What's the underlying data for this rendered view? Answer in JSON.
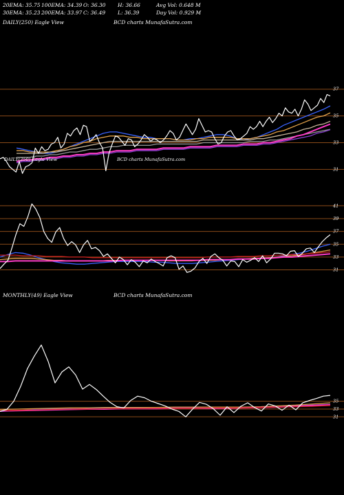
{
  "header": {
    "ema20": "20EMA: 35.75",
    "ema100": "100EMA: 34.39",
    "open": "O: 36.30",
    "high": "H: 36.66",
    "avg_vol": "Avg Vol: 0.648  M",
    "ema30": "30EMA: 35.23",
    "ema200": "200EMA: 33.97",
    "close": "C: 36.49",
    "low": "L: 36.39",
    "day_vol": "Day Vol: 0.929  M"
  },
  "colors": {
    "background": "#000000",
    "price": "#ffffff",
    "ma_blue": "#3a63ff",
    "ma_orange": "#e3a24a",
    "ma_tan": "#c9b79c",
    "ma_gray": "#9b9b9b",
    "ma_magenta": "#ff3cc8",
    "ma_purple": "#8a3fd1",
    "ma_red": "#d02020",
    "gridline": "#8a4a18"
  },
  "chart_data": [
    {
      "type": "line",
      "label": "DAILY(250) Eagle  View",
      "watermark": "BCD charts MunafaSutra.com",
      "overlay_text": "BCD charts MunafaSutra.com",
      "overlay_prefix": "DAILY(250) Eagle  View",
      "y_ticks": [
        37,
        35,
        33,
        31
      ],
      "ylim": [
        30.2,
        37.6
      ],
      "grid": true,
      "price": [
        31.8,
        31.9,
        31.6,
        31.2,
        31.0,
        30.8,
        31.6,
        30.7,
        31.2,
        31.3,
        31.5,
        32.6,
        32.2,
        32.7,
        32.4,
        32.5,
        32.9,
        33.0,
        33.4,
        32.6,
        32.9,
        33.7,
        33.5,
        33.9,
        34.1,
        33.6,
        34.3,
        34.2,
        33.1,
        33.3,
        33.6,
        33.0,
        32.6,
        30.9,
        32.2,
        32.9,
        33.5,
        33.4,
        33.1,
        32.8,
        33.3,
        33.2,
        32.7,
        32.9,
        33.2,
        33.6,
        33.4,
        33.1,
        33.3,
        33.2,
        33.0,
        33.2,
        33.5,
        33.9,
        33.7,
        33.2,
        33.4,
        33.9,
        34.4,
        34.0,
        33.6,
        34.0,
        34.8,
        34.3,
        33.8,
        33.9,
        33.8,
        33.3,
        32.9,
        33.0,
        33.5,
        33.8,
        33.9,
        33.5,
        33.2,
        33.3,
        33.5,
        33.7,
        34.2,
        34.0,
        34.2,
        34.6,
        34.2,
        34.6,
        34.9,
        34.5,
        34.8,
        35.2,
        35.0,
        35.6,
        35.3,
        35.2,
        35.5,
        35.0,
        35.5,
        36.2,
        35.9,
        35.4,
        35.6,
        35.8,
        36.3,
        36.0,
        36.6,
        36.49
      ],
      "series": [
        {
          "name": "20EMA",
          "color_key": "ma_blue",
          "values": [
            32.6,
            32.5,
            32.4,
            32.3,
            32.2,
            32.2,
            32.3,
            32.5,
            32.7,
            32.9,
            33.1,
            33.3,
            33.5,
            33.7,
            33.8,
            33.8,
            33.7,
            33.6,
            33.5,
            33.4,
            33.4,
            33.3,
            33.3,
            33.3,
            33.2,
            33.2,
            33.3,
            33.3,
            33.4,
            33.5,
            33.6,
            33.6,
            33.5,
            33.3,
            33.2,
            33.3,
            33.4,
            33.6,
            33.8,
            34.0,
            34.3,
            34.5,
            34.7,
            34.9,
            35.1,
            35.3,
            35.5,
            35.75
          ]
        },
        {
          "name": "30EMA",
          "color_key": "ma_orange",
          "values": [
            32.4,
            32.4,
            32.3,
            32.3,
            32.3,
            32.3,
            32.4,
            32.5,
            32.7,
            32.8,
            33.0,
            33.1,
            33.3,
            33.4,
            33.5,
            33.5,
            33.5,
            33.4,
            33.4,
            33.3,
            33.3,
            33.3,
            33.3,
            33.3,
            33.2,
            33.2,
            33.2,
            33.3,
            33.3,
            33.4,
            33.4,
            33.4,
            33.4,
            33.3,
            33.3,
            33.3,
            33.4,
            33.5,
            33.6,
            33.8,
            33.9,
            34.1,
            34.3,
            34.5,
            34.7,
            34.9,
            35.0,
            35.23
          ]
        },
        {
          "name": "EMA",
          "color_key": "ma_tan",
          "values": [
            32.2,
            32.2,
            32.2,
            32.2,
            32.2,
            32.3,
            32.3,
            32.4,
            32.5,
            32.6,
            32.7,
            32.8,
            32.9,
            33.0,
            33.1,
            33.1,
            33.1,
            33.1,
            33.1,
            33.1,
            33.1,
            33.1,
            33.1,
            33.1,
            33.1,
            33.1,
            33.1,
            33.1,
            33.2,
            33.2,
            33.2,
            33.2,
            33.2,
            33.2,
            33.2,
            33.2,
            33.3,
            33.3,
            33.4,
            33.5,
            33.6,
            33.7,
            33.8,
            34.0,
            34.1,
            34.3,
            34.4,
            34.6
          ]
        },
        {
          "name": "EMA",
          "color_key": "ma_gray",
          "values": [
            31.9,
            31.9,
            31.9,
            32.0,
            32.0,
            32.1,
            32.1,
            32.2,
            32.3,
            32.3,
            32.4,
            32.5,
            32.5,
            32.6,
            32.7,
            32.7,
            32.8,
            32.8,
            32.8,
            32.8,
            32.8,
            32.9,
            32.9,
            32.9,
            32.9,
            32.9,
            32.9,
            32.9,
            33.0,
            33.0,
            33.0,
            33.0,
            33.0,
            33.0,
            33.0,
            33.1,
            33.1,
            33.1,
            33.2,
            33.2,
            33.3,
            33.4,
            33.5,
            33.6,
            33.7,
            33.8,
            33.9,
            34.0
          ]
        },
        {
          "name": "100EMA",
          "color_key": "ma_magenta",
          "values": [
            31.6,
            31.7,
            31.7,
            31.8,
            31.8,
            31.9,
            31.9,
            32.0,
            32.0,
            32.1,
            32.1,
            32.2,
            32.2,
            32.3,
            32.3,
            32.4,
            32.4,
            32.4,
            32.5,
            32.5,
            32.5,
            32.5,
            32.6,
            32.6,
            32.6,
            32.6,
            32.7,
            32.7,
            32.7,
            32.7,
            32.8,
            32.8,
            32.8,
            32.8,
            32.9,
            32.9,
            32.9,
            33.0,
            33.0,
            33.1,
            33.2,
            33.3,
            33.5,
            33.6,
            33.8,
            34.0,
            34.2,
            34.39
          ]
        },
        {
          "name": "200EMA",
          "color_key": "ma_purple",
          "values": [
            31.5,
            31.6,
            31.6,
            31.7,
            31.7,
            31.8,
            31.8,
            31.9,
            31.9,
            32.0,
            32.0,
            32.1,
            32.1,
            32.2,
            32.2,
            32.3,
            32.3,
            32.3,
            32.4,
            32.4,
            32.4,
            32.4,
            32.5,
            32.5,
            32.5,
            32.5,
            32.6,
            32.6,
            32.6,
            32.6,
            32.7,
            32.7,
            32.7,
            32.7,
            32.8,
            32.8,
            32.8,
            32.9,
            32.9,
            33.0,
            33.1,
            33.2,
            33.3,
            33.4,
            33.5,
            33.7,
            33.8,
            33.97
          ]
        }
      ]
    },
    {
      "type": "line",
      "label": "",
      "y_ticks": [
        41,
        39,
        37,
        35,
        33,
        31
      ],
      "ylim": [
        30.2,
        42.0
      ],
      "grid": true,
      "price": [
        31.2,
        31.9,
        32.5,
        34.4,
        36.5,
        38.2,
        37.8,
        39.3,
        41.3,
        40.5,
        39.2,
        37.0,
        35.9,
        35.3,
        36.9,
        37.6,
        35.9,
        34.8,
        35.4,
        34.9,
        33.7,
        34.9,
        35.6,
        34.3,
        34.5,
        34.0,
        33.1,
        33.5,
        32.8,
        32.1,
        33.0,
        32.6,
        31.8,
        32.6,
        32.2,
        31.5,
        32.4,
        32.1,
        32.7,
        32.3,
        32.0,
        31.6,
        32.9,
        33.2,
        32.9,
        31.1,
        31.6,
        30.6,
        30.8,
        31.3,
        32.3,
        32.8,
        32.0,
        33.1,
        33.5,
        32.9,
        32.5,
        31.6,
        32.4,
        32.3,
        31.5,
        32.6,
        32.2,
        32.5,
        32.9,
        32.3,
        33.2,
        32.1,
        32.7,
        33.6,
        33.6,
        33.5,
        33.2,
        33.9,
        34.0,
        33.1,
        33.6,
        34.3,
        34.4,
        33.7,
        34.6,
        35.4,
        36.0,
        36.49
      ],
      "series": [
        {
          "name": "EMA",
          "color_key": "ma_blue",
          "values": [
            33.0,
            33.4,
            33.7,
            33.6,
            33.3,
            32.9,
            32.6,
            32.3,
            32.1,
            32.0,
            31.9,
            31.9,
            32.0,
            32.1,
            32.2,
            32.3,
            32.3,
            32.3,
            32.3,
            32.3,
            32.2,
            32.2,
            32.1,
            32.0,
            32.0,
            32.0,
            32.1,
            32.2,
            32.3,
            32.4,
            32.5,
            32.6,
            32.7,
            32.7,
            32.8,
            32.9,
            33.0,
            33.2,
            33.4,
            33.6,
            33.9,
            34.3,
            34.7,
            35.0
          ]
        },
        {
          "name": "EMA",
          "color_key": "ma_orange",
          "values": [
            32.6,
            32.7,
            32.8,
            32.8,
            32.8,
            32.7,
            32.6,
            32.5,
            32.5,
            32.4,
            32.4,
            32.4,
            32.4,
            32.4,
            32.5,
            32.5,
            32.5,
            32.5,
            32.5,
            32.5,
            32.5,
            32.5,
            32.4,
            32.4,
            32.4,
            32.4,
            32.5,
            32.5,
            32.5,
            32.6,
            32.6,
            32.7,
            32.7,
            32.8,
            32.8,
            32.9,
            33.0,
            33.1,
            33.2,
            33.3,
            33.5,
            33.7,
            33.9,
            34.1
          ]
        },
        {
          "name": "EMA",
          "color_key": "ma_magenta",
          "values": [
            32.3,
            32.3,
            32.4,
            32.4,
            32.4,
            32.4,
            32.4,
            32.4,
            32.4,
            32.4,
            32.4,
            32.4,
            32.4,
            32.4,
            32.4,
            32.4,
            32.5,
            32.5,
            32.5,
            32.5,
            32.5,
            32.5,
            32.5,
            32.5,
            32.5,
            32.5,
            32.5,
            32.6,
            32.6,
            32.6,
            32.6,
            32.7,
            32.7,
            32.7,
            32.8,
            32.8,
            32.9,
            33.0,
            33.0,
            33.1,
            33.2,
            33.3,
            33.4,
            33.5
          ]
        },
        {
          "name": "EMA",
          "color_key": "ma_red",
          "values": [
            33.3,
            33.3,
            33.3,
            33.2,
            33.2,
            33.2,
            33.1,
            33.1,
            33.1,
            33.0,
            33.0,
            33.0,
            32.9,
            32.9,
            32.9,
            32.9,
            32.9,
            32.9,
            32.9,
            32.9,
            32.9,
            32.9,
            32.9,
            32.9,
            32.9,
            32.9,
            32.9,
            33.0,
            33.0,
            33.0,
            33.0,
            33.1,
            33.1,
            33.1,
            33.2,
            33.2,
            33.3,
            33.3,
            33.4,
            33.4,
            33.5,
            33.6,
            33.7,
            33.8
          ]
        }
      ]
    },
    {
      "type": "line",
      "label": "MONTHLY(49) Eagle  View",
      "watermark": "BCD charts MunafaSutra.com",
      "y_ticks": [
        35,
        33,
        31
      ],
      "ylim": [
        30.0,
        55.0
      ],
      "grid": true,
      "price": [
        32.4,
        32.9,
        35.0,
        38.8,
        43.4,
        46.6,
        49.4,
        45.2,
        39.7,
        42.5,
        43.8,
        41.7,
        38.1,
        39.3,
        38.0,
        36.3,
        34.7,
        33.6,
        33.3,
        35.2,
        36.3,
        35.9,
        35.0,
        34.4,
        33.8,
        33.0,
        32.4,
        31.0,
        33.0,
        34.7,
        34.2,
        33.1,
        31.4,
        33.6,
        32.1,
        33.7,
        34.6,
        33.4,
        32.5,
        34.3,
        33.8,
        32.7,
        34.0,
        32.8,
        34.6,
        35.2,
        35.7,
        36.3,
        36.49
      ],
      "series": [
        {
          "name": "EMA",
          "color_key": "ma_blue",
          "values": [
            32.4,
            32.6,
            32.9,
            33.1,
            33.2,
            33.3,
            33.3,
            33.3,
            33.3,
            33.4,
            33.4,
            33.4,
            33.4,
            33.4,
            33.4,
            33.5,
            33.6,
            33.8,
            34.0,
            34.2
          ]
        },
        {
          "name": "EMA",
          "color_key": "ma_orange",
          "values": [
            32.9,
            33.0,
            33.1,
            33.2,
            33.3,
            33.3,
            33.4,
            33.4,
            33.4,
            33.4,
            33.5,
            33.5,
            33.5,
            33.5,
            33.5,
            33.6,
            33.8,
            34.0,
            34.3,
            34.6
          ]
        },
        {
          "name": "EMA",
          "color_key": "ma_magenta",
          "values": [
            32.5,
            32.6,
            32.7,
            32.8,
            32.9,
            33.0,
            33.0,
            33.1,
            33.1,
            33.1,
            33.2,
            33.2,
            33.2,
            33.2,
            33.3,
            33.4,
            33.5,
            33.7,
            33.9,
            34.1
          ]
        },
        {
          "name": "EMA",
          "color_key": "ma_red",
          "values": [
            32.6,
            32.7,
            32.8,
            32.9,
            33.0,
            33.0,
            33.1,
            33.1,
            33.1,
            33.2,
            33.2,
            33.2,
            33.3,
            33.3,
            33.3,
            33.4,
            33.5,
            33.6,
            33.7,
            33.9
          ]
        }
      ]
    }
  ]
}
